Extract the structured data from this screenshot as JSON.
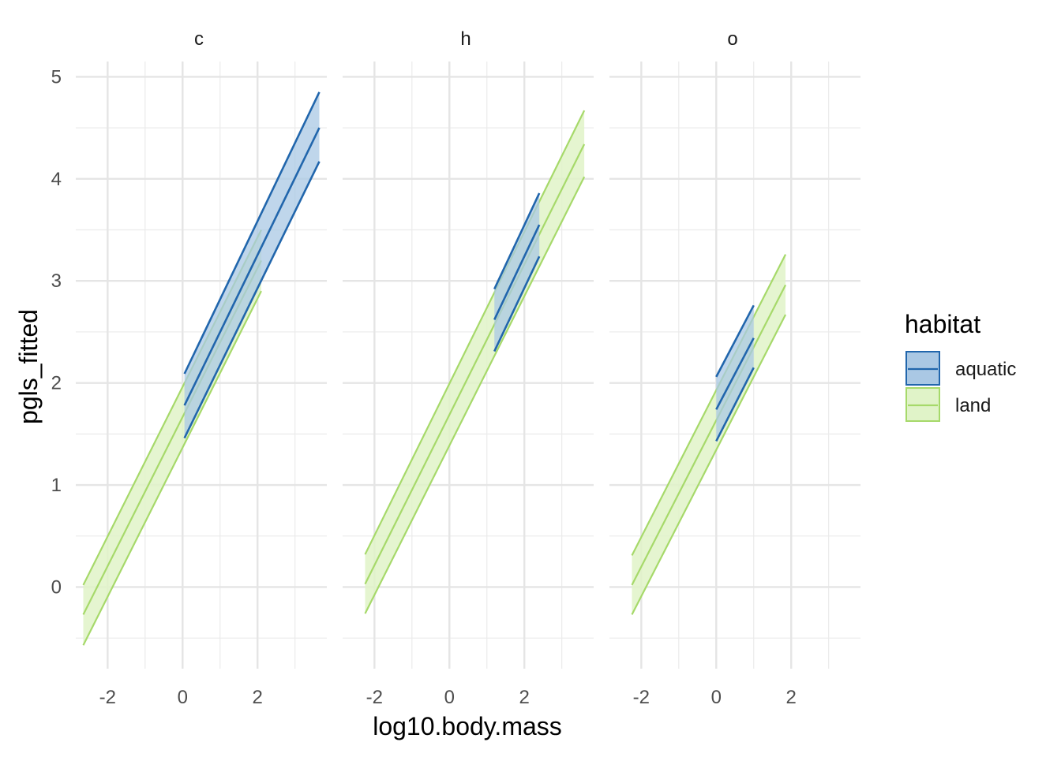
{
  "chart_data": {
    "type": "line",
    "ylabel": "pgls_fitted",
    "xlabel": "log10.body.mass",
    "xlim": [
      -2.85,
      3.85
    ],
    "ylim": [
      -0.8,
      5.15
    ],
    "x_ticks": [
      -2,
      0,
      2
    ],
    "x_tick_labels": [
      "-2",
      "0",
      "2"
    ],
    "y_ticks": [
      0,
      1,
      2,
      3,
      4,
      5
    ],
    "y_tick_labels": [
      "0",
      "1",
      "2",
      "3",
      "4",
      "5"
    ],
    "grid": true,
    "legend": {
      "title": "habitat",
      "position": "right",
      "entries": [
        {
          "label": "aquatic",
          "line_color": "#2166ac",
          "fill_color": "#aac8e4"
        },
        {
          "label": "land",
          "line_color": "#a6d96a",
          "fill_color": "#e0f3c8"
        }
      ]
    },
    "panels": [
      {
        "label": "c",
        "series": [
          {
            "name": "land",
            "x": [
              -2.65,
              2.1
            ],
            "fit": [
              -0.27,
              3.2
            ],
            "lower": [
              -0.57,
              2.9
            ],
            "upper": [
              0.02,
              3.5
            ]
          },
          {
            "name": "aquatic",
            "x": [
              0.05,
              3.65
            ],
            "fit": [
              1.78,
              4.5
            ],
            "lower": [
              1.46,
              4.17
            ],
            "upper": [
              2.09,
              4.85
            ]
          }
        ]
      },
      {
        "label": "h",
        "series": [
          {
            "name": "land",
            "x": [
              -2.25,
              3.6
            ],
            "fit": [
              0.03,
              4.34
            ],
            "lower": [
              -0.26,
              4.02
            ],
            "upper": [
              0.32,
              4.67
            ]
          },
          {
            "name": "aquatic",
            "x": [
              1.2,
              2.4
            ],
            "fit": [
              2.62,
              3.55
            ],
            "lower": [
              2.31,
              3.24
            ],
            "upper": [
              2.92,
              3.86
            ]
          }
        ]
      },
      {
        "label": "o",
        "series": [
          {
            "name": "land",
            "x": [
              -2.25,
              1.85
            ],
            "fit": [
              0.02,
              2.96
            ],
            "lower": [
              -0.27,
              2.67
            ],
            "upper": [
              0.31,
              3.26
            ]
          },
          {
            "name": "aquatic",
            "x": [
              0.0,
              1.0
            ],
            "fit": [
              1.74,
              2.44
            ],
            "lower": [
              1.43,
              2.15
            ],
            "upper": [
              2.06,
              2.76
            ]
          }
        ]
      }
    ]
  }
}
